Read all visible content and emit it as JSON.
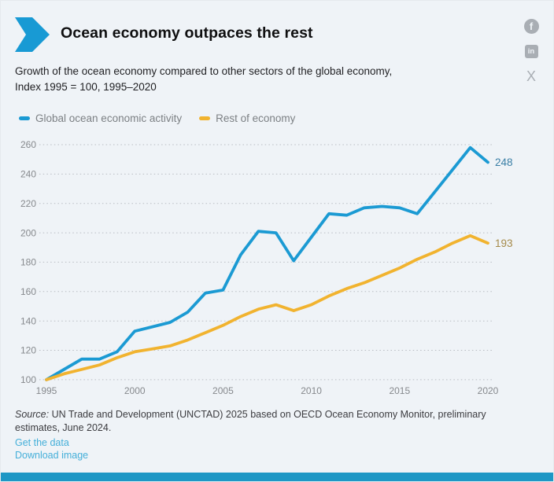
{
  "header": {
    "title": "Ocean economy outpaces the rest",
    "subtitle_line1": "Growth of the ocean economy compared to other sectors of the global economy,",
    "subtitle_line2": "Index 1995 = 100, 1995–2020"
  },
  "share": {
    "facebook_glyph": "f",
    "linkedin_glyph": "in",
    "x_glyph": "X"
  },
  "chart_data": {
    "type": "line",
    "title": "Ocean economy outpaces the rest",
    "index_note": "Index 1995 = 100, 1995–2020",
    "x": [
      1995,
      1996,
      1997,
      1998,
      1999,
      2000,
      2001,
      2002,
      2003,
      2004,
      2005,
      2006,
      2007,
      2008,
      2009,
      2010,
      2011,
      2012,
      2013,
      2014,
      2015,
      2016,
      2017,
      2018,
      2019,
      2020
    ],
    "series": [
      {
        "name": "Global ocean economic activity",
        "key": "ocean-series",
        "color": "#1b9ad3",
        "label_color": "#3a7fa6",
        "end_label": "248",
        "values": [
          100,
          107,
          114,
          114,
          119,
          133,
          136,
          139,
          146,
          159,
          161,
          185,
          201,
          200,
          181,
          197,
          213,
          212,
          217,
          218,
          217,
          213,
          228,
          243,
          258,
          248
        ]
      },
      {
        "name": "Rest of economy",
        "key": "rest-series",
        "color": "#f1b32f",
        "label_color": "#a58a49",
        "end_label": "193",
        "values": [
          100,
          104,
          107,
          110,
          115,
          119,
          121,
          123,
          127,
          132,
          137,
          143,
          148,
          151,
          147,
          151,
          157,
          162,
          166,
          171,
          176,
          182,
          187,
          193,
          198,
          193
        ]
      }
    ],
    "yticks": [
      100,
      120,
      140,
      160,
      180,
      200,
      220,
      240,
      260
    ],
    "xticks": [
      1995,
      2000,
      2005,
      2010,
      2015,
      2020
    ],
    "ylim": [
      97,
      265
    ],
    "grid": "dotted-horizontal",
    "legend_position": "top-left"
  },
  "footer": {
    "source_label": "Source:",
    "source_text": " UN Trade and Development (UNCTAD) 2025 based on OECD Ocean Economy Monitor, preliminary estimates, June 2024.",
    "get_data_label": "Get the data",
    "download_label": "Download image"
  },
  "colors": {
    "background": "#eff3f7",
    "chevron": "#189ad4",
    "ocean_line": "#1b9ad3",
    "rest_line": "#f1b32f",
    "grid": "#b9bdc3",
    "axis_text": "#86898d",
    "legend_text": "#7c8084",
    "bottom_bar": "#1e97c5",
    "link": "#45afd9",
    "social_gray": "#a9aeb4"
  }
}
